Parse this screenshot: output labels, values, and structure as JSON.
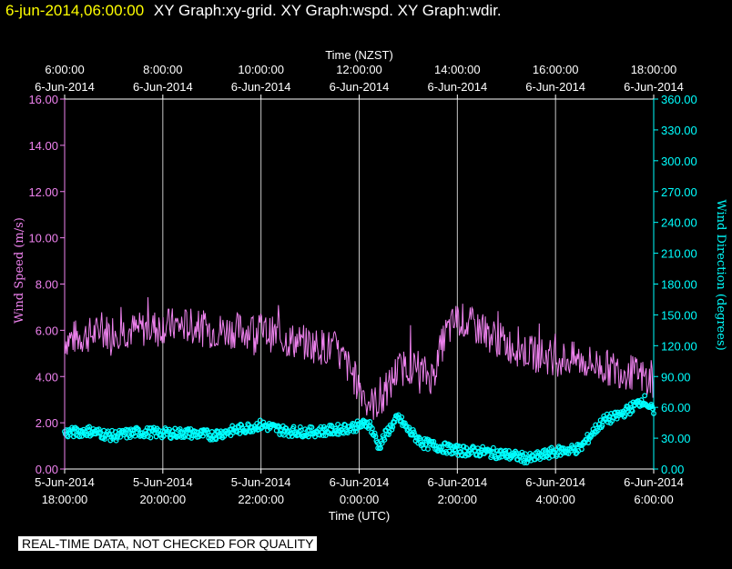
{
  "header": {
    "timestamp": "6-jun-2014,06:00:00",
    "graphs": "XY Graph:xy-grid.  XY Graph:wspd.  XY Graph:wdir."
  },
  "disclaimer": "REAL-TIME DATA, NOT CHECKED FOR QUALITY",
  "colors": {
    "background": "#000000",
    "frame": "#ffffff",
    "grid": "#c8c8c8",
    "wind_speed": "#ee82ee",
    "wind_direction": "#00ffff",
    "header_timestamp": "#ffff00"
  },
  "chart_data": {
    "type": "line",
    "grid": true,
    "top_axis": {
      "title": "Time (NZST)",
      "ticks": [
        [
          "6:00:00",
          "6-Jun-2014"
        ],
        [
          "8:00:00",
          "6-Jun-2014"
        ],
        [
          "10:00:00",
          "6-Jun-2014"
        ],
        [
          "12:00:00",
          "6-Jun-2014"
        ],
        [
          "14:00:00",
          "6-Jun-2014"
        ],
        [
          "16:00:00",
          "6-Jun-2014"
        ],
        [
          "18:00:00",
          "6-Jun-2014"
        ]
      ]
    },
    "bottom_axis": {
      "title": "Time (UTC)",
      "ticks": [
        [
          "5-Jun-2014",
          "18:00:00"
        ],
        [
          "5-Jun-2014",
          "20:00:00"
        ],
        [
          "5-Jun-2014",
          "22:00:00"
        ],
        [
          "6-Jun-2014",
          "0:00:00"
        ],
        [
          "6-Jun-2014",
          "2:00:00"
        ],
        [
          "6-Jun-2014",
          "4:00:00"
        ],
        [
          "6-Jun-2014",
          "6:00:00"
        ]
      ]
    },
    "x_range_hours_utc": [
      18,
      30
    ],
    "left_axis": {
      "label": "Wind Speed (m/s)",
      "range": [
        0,
        16
      ],
      "ticks": [
        "0.00",
        "2.00",
        "4.00",
        "6.00",
        "8.00",
        "10.00",
        "12.00",
        "14.00",
        "16.00"
      ]
    },
    "right_axis": {
      "label": "Wind Direction (degrees)",
      "range": [
        0,
        360
      ],
      "ticks": [
        "0.00",
        "30.00",
        "60.00",
        "90.00",
        "120.00",
        "150.00",
        "180.00",
        "210.00",
        "240.00",
        "270.00",
        "300.00",
        "330.00",
        "360.00"
      ]
    },
    "series": [
      {
        "key": "wspd",
        "axis": "left",
        "style": "line",
        "x_hours_utc": [
          18.0,
          18.5,
          19.0,
          19.5,
          20.0,
          20.5,
          21.0,
          21.5,
          22.0,
          22.5,
          23.0,
          23.5,
          23.75,
          24.0,
          24.25,
          24.5,
          24.75,
          25.0,
          25.25,
          25.5,
          25.75,
          26.0,
          26.5,
          27.0,
          27.5,
          28.0,
          28.5,
          29.0,
          29.5,
          30.0
        ],
        "values": [
          5.6,
          5.8,
          6.0,
          6.0,
          6.2,
          6.2,
          6.0,
          6.0,
          6.0,
          5.6,
          5.4,
          5.2,
          4.5,
          3.6,
          2.8,
          3.0,
          4.2,
          4.5,
          4.2,
          4.0,
          5.8,
          6.5,
          6.0,
          5.4,
          5.0,
          4.8,
          4.7,
          4.4,
          4.2,
          3.8
        ],
        "noise": 0.8
      },
      {
        "key": "wdir",
        "axis": "right",
        "style": "points",
        "x_hours_utc": [
          18.0,
          18.5,
          19.0,
          19.5,
          20.0,
          20.5,
          21.0,
          21.5,
          22.0,
          22.5,
          23.0,
          23.5,
          24.0,
          24.2,
          24.4,
          24.6,
          24.8,
          25.0,
          25.3,
          25.6,
          26.0,
          26.5,
          27.0,
          27.5,
          28.0,
          28.5,
          28.8,
          29.0,
          29.2,
          29.5,
          29.8,
          30.0
        ],
        "values": [
          35,
          37,
          32,
          36,
          35,
          35,
          33,
          38,
          43,
          37,
          36,
          38,
          42,
          45,
          22,
          38,
          50,
          38,
          25,
          22,
          18,
          17,
          14,
          10,
          17,
          20,
          38,
          48,
          50,
          58,
          68,
          55
        ],
        "noise": 5
      }
    ]
  }
}
